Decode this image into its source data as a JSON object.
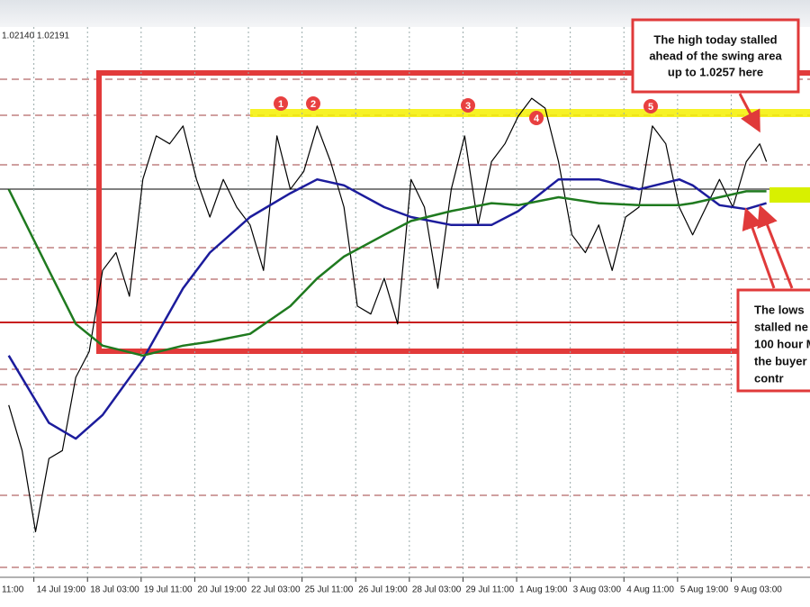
{
  "chart_data": {
    "type": "line",
    "header": "1.02140 1.02191",
    "xlim": [
      11.8,
      495
    ],
    "ylim": [
      1.0027,
      1.03
    ],
    "xticks": [
      {
        "value": 0,
        "label": "11:00"
      },
      {
        "value": 32,
        "label": "14 Jul 19:00"
      },
      {
        "value": 64,
        "label": "18 Jul 03:00"
      },
      {
        "value": 96,
        "label": "19 Jul 11:00"
      },
      {
        "value": 128,
        "label": "20 Jul 19:00"
      },
      {
        "value": 160,
        "label": "22 Jul 03:00"
      },
      {
        "value": 192,
        "label": "25 Jul 11:00"
      },
      {
        "value": 224,
        "label": "26 Jul 19:00"
      },
      {
        "value": 256,
        "label": "28 Jul 03:00"
      },
      {
        "value": 288,
        "label": "29 Jul 11:00"
      },
      {
        "value": 320,
        "label": "1 Aug 19:00"
      },
      {
        "value": 352,
        "label": "3 Aug 03:00"
      },
      {
        "value": 384,
        "label": "4 Aug 11:00"
      },
      {
        "value": 416,
        "label": "5 Aug 19:00"
      },
      {
        "value": 448,
        "label": "9 Aug 03:00"
      }
    ],
    "series": [
      {
        "color": "#000000",
        "x": [
          17,
          25,
          33,
          41,
          49,
          57,
          65,
          73,
          81,
          89,
          97,
          105,
          113,
          121,
          129,
          137,
          145,
          153,
          161,
          169,
          177,
          185,
          193,
          201,
          209,
          217,
          225,
          233,
          241,
          249,
          257,
          265,
          273,
          281,
          289,
          297,
          305,
          313,
          321,
          329,
          337,
          345,
          353,
          361,
          369,
          377,
          385,
          393,
          401,
          409,
          417,
          425,
          433,
          441,
          449,
          457,
          465,
          469
        ],
        "values": [
          1.0109,
          1.0086,
          1.0045,
          1.0082,
          1.0086,
          1.0123,
          1.0136,
          1.0177,
          1.0186,
          1.0164,
          1.0223,
          1.0245,
          1.0241,
          1.025,
          1.0223,
          1.0204,
          1.0223,
          1.0209,
          1.02,
          1.0177,
          1.0245,
          1.0218,
          1.0227,
          1.025,
          1.0232,
          1.0209,
          1.0159,
          1.0155,
          1.0173,
          1.015,
          1.0223,
          1.0209,
          1.0168,
          1.0218,
          1.0245,
          1.02,
          1.0232,
          1.0241,
          1.0255,
          1.0264,
          1.0259,
          1.0232,
          1.0195,
          1.0186,
          1.02,
          1.0177,
          1.0204,
          1.0209,
          1.025,
          1.0241,
          1.0209,
          1.0195,
          1.0209,
          1.0223,
          1.0209,
          1.0232,
          1.0241,
          1.0232
        ]
      },
      {
        "color": "#1c1c9c",
        "x": [
          17,
          41,
          57,
          73,
          97,
          121,
          137,
          161,
          185,
          201,
          217,
          241,
          257,
          281,
          305,
          321,
          345,
          369,
          393,
          417,
          425,
          441,
          457,
          469
        ],
        "values": [
          1.0134,
          1.01,
          1.0092,
          1.0104,
          1.0132,
          1.0168,
          1.0186,
          1.0204,
          1.0216,
          1.0223,
          1.022,
          1.0209,
          1.0204,
          1.02,
          1.02,
          1.0207,
          1.0223,
          1.0223,
          1.0218,
          1.0223,
          1.022,
          1.021,
          1.0208,
          1.0211
        ]
      },
      {
        "color": "#1f7a1f",
        "x": [
          17,
          41,
          57,
          73,
          97,
          121,
          137,
          161,
          185,
          201,
          217,
          241,
          257,
          281,
          305,
          321,
          345,
          369,
          393,
          417,
          425,
          441,
          457,
          469
        ],
        "values": [
          1.0218,
          1.0177,
          1.015,
          1.0139,
          1.0134,
          1.0139,
          1.0141,
          1.0145,
          1.0159,
          1.0173,
          1.0184,
          1.0195,
          1.0202,
          1.0207,
          1.0211,
          1.021,
          1.0214,
          1.0211,
          1.021,
          1.021,
          1.0211,
          1.0214,
          1.0217,
          1.0217
        ]
      }
    ],
    "markers": [
      "1",
      "2",
      "3",
      "4",
      "5"
    ],
    "annotations": [
      {
        "lines": [
          "The high today stalled",
          "ahead of the swing area",
          "up to 1.0257 here"
        ]
      },
      {
        "lines": [
          "The lows",
          "stalled ne",
          "100 hour M",
          "the buyer",
          "contr"
        ]
      }
    ]
  }
}
